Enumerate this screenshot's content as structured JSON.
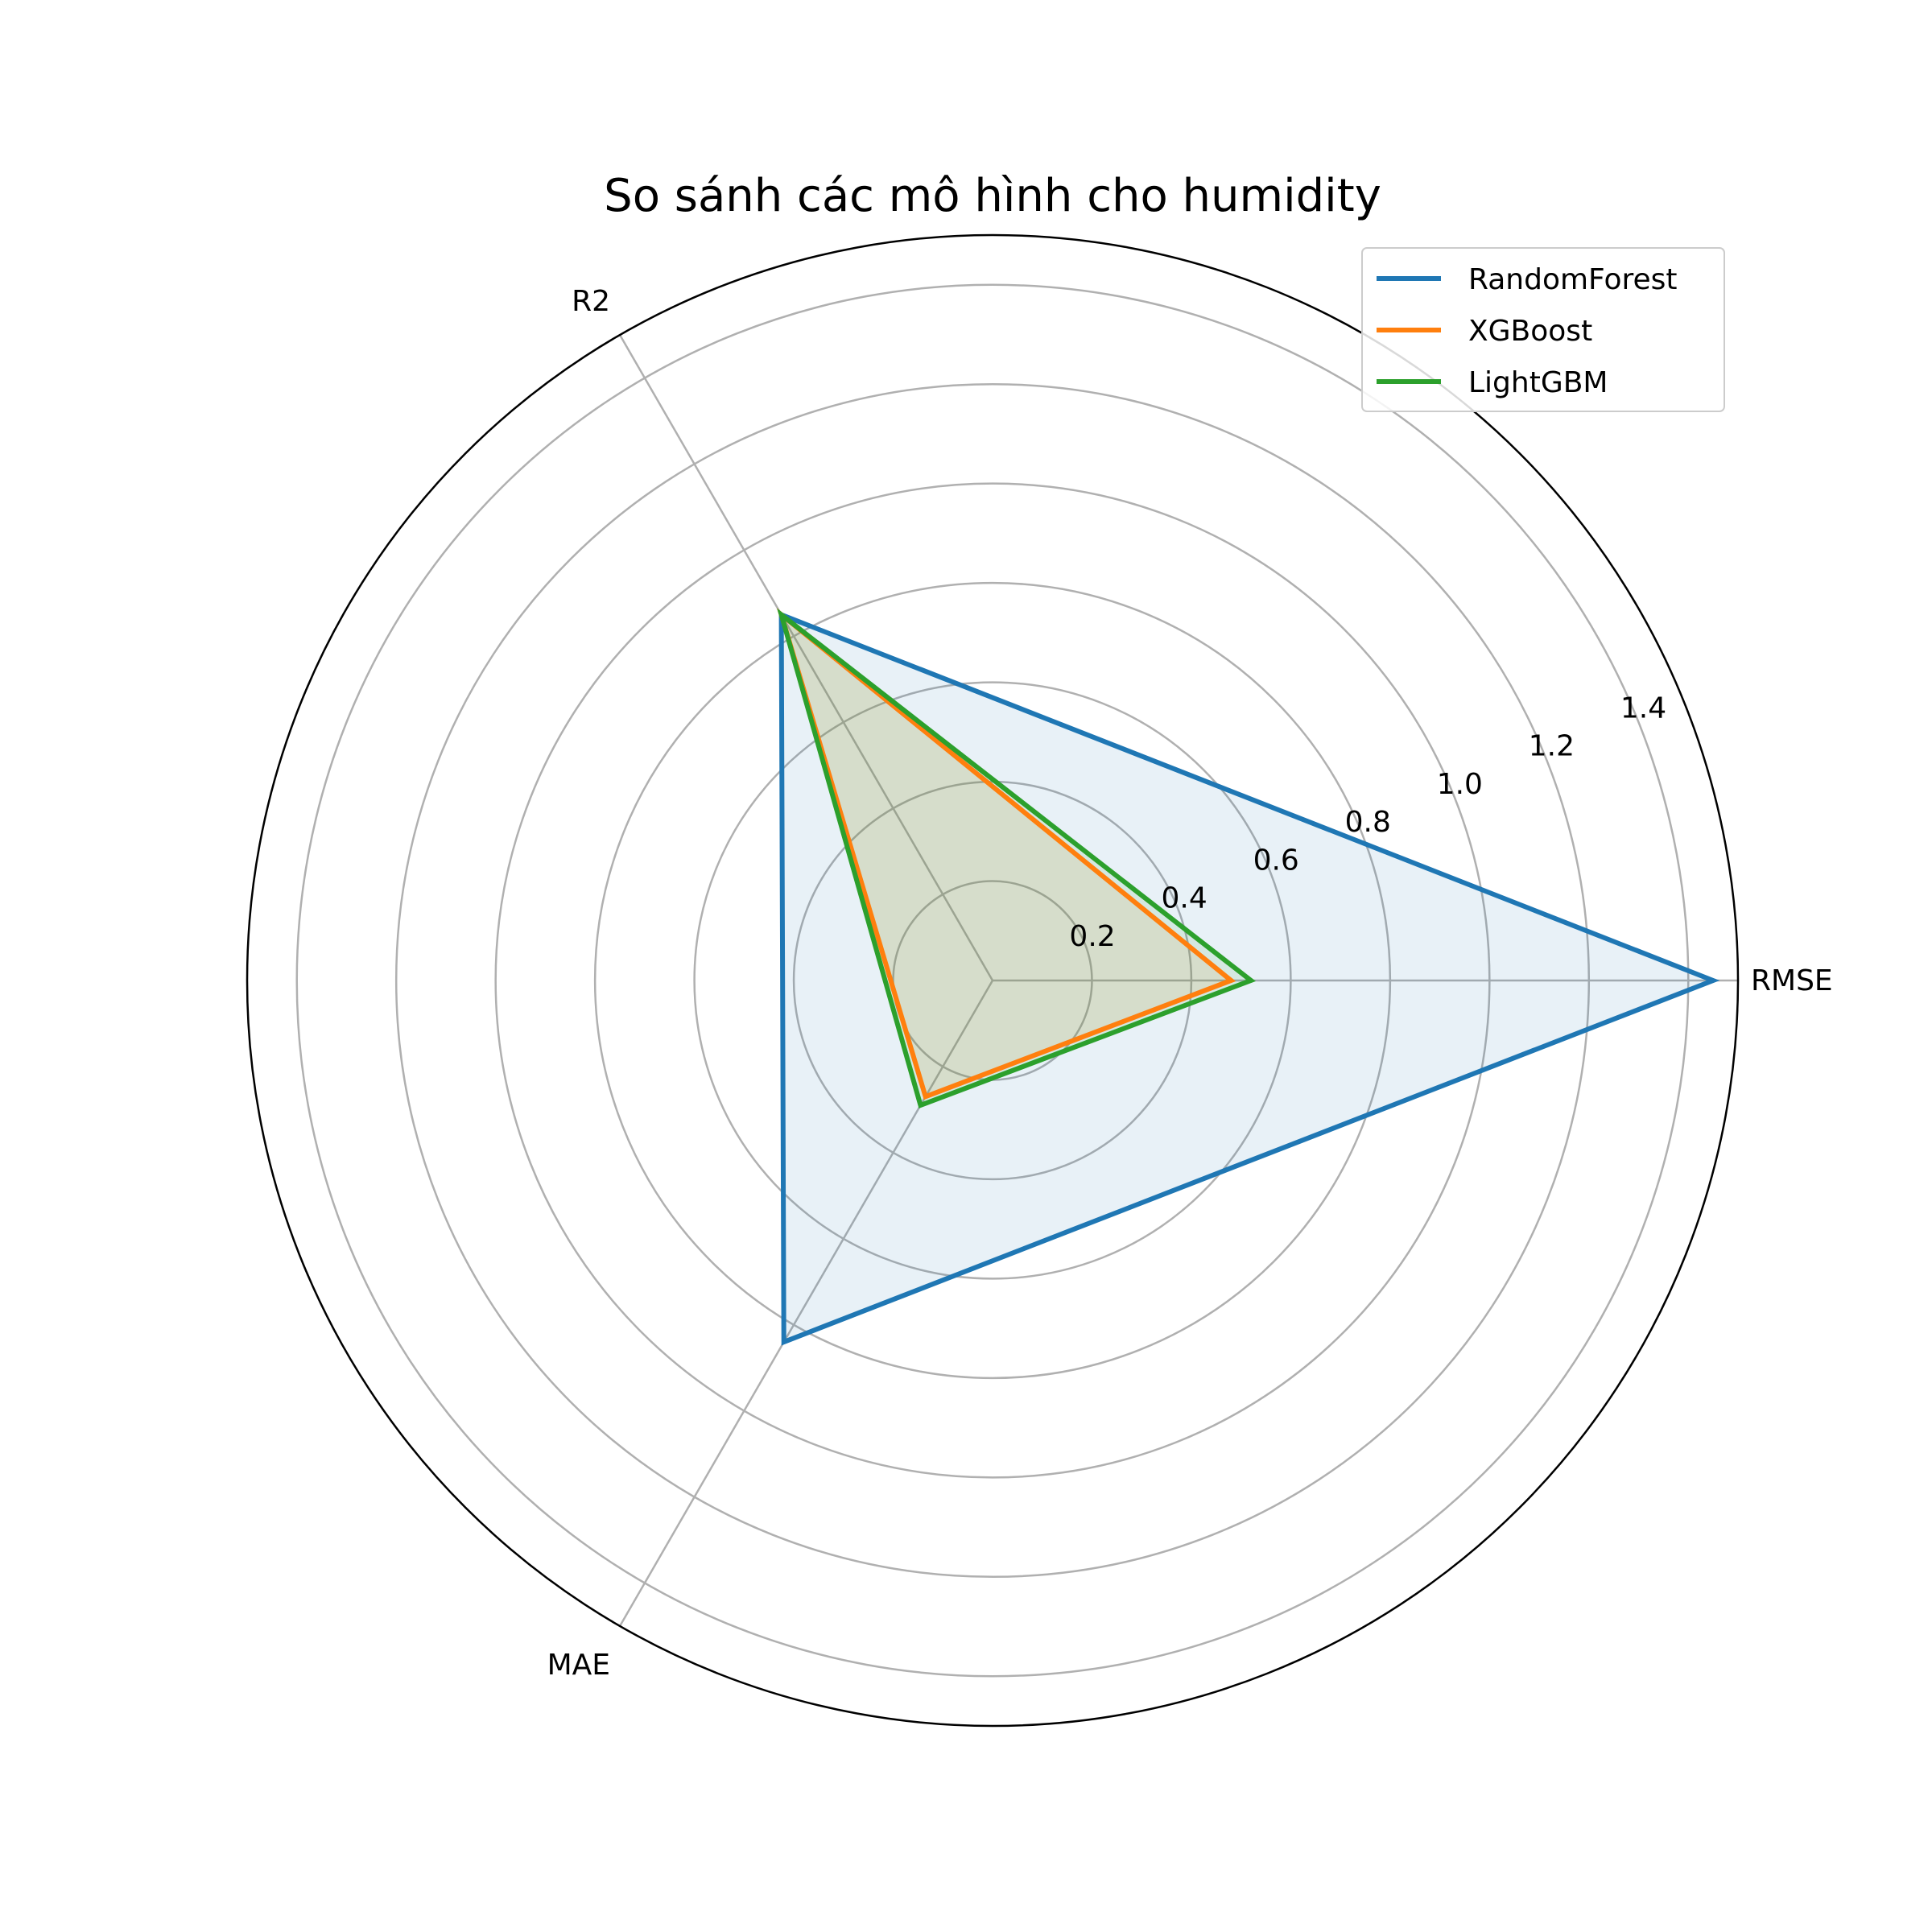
{
  "chart_data": {
    "type": "radar",
    "title": "So sánh các mô hình cho humidity",
    "axes": [
      "RMSE",
      "R2",
      "MAE"
    ],
    "rlim": [
      0,
      1.5
    ],
    "r_ticks": [
      0.2,
      0.4,
      0.6,
      0.8,
      1.0,
      1.2,
      1.4
    ],
    "r_tick_labels": [
      "0.2",
      "0.4",
      "0.6",
      "0.8",
      "1.0",
      "1.2",
      "1.4"
    ],
    "grid": true,
    "legend_position": "top-right",
    "series": [
      {
        "name": "RandomForest",
        "values": [
          1.45,
          0.85,
          0.84
        ],
        "color": "#1f77b4"
      },
      {
        "name": "XGBoost",
        "values": [
          0.48,
          0.85,
          0.27
        ],
        "color": "#ff7f0e"
      },
      {
        "name": "LightGBM",
        "values": [
          0.52,
          0.85,
          0.29
        ],
        "color": "#2ca02c"
      }
    ]
  }
}
